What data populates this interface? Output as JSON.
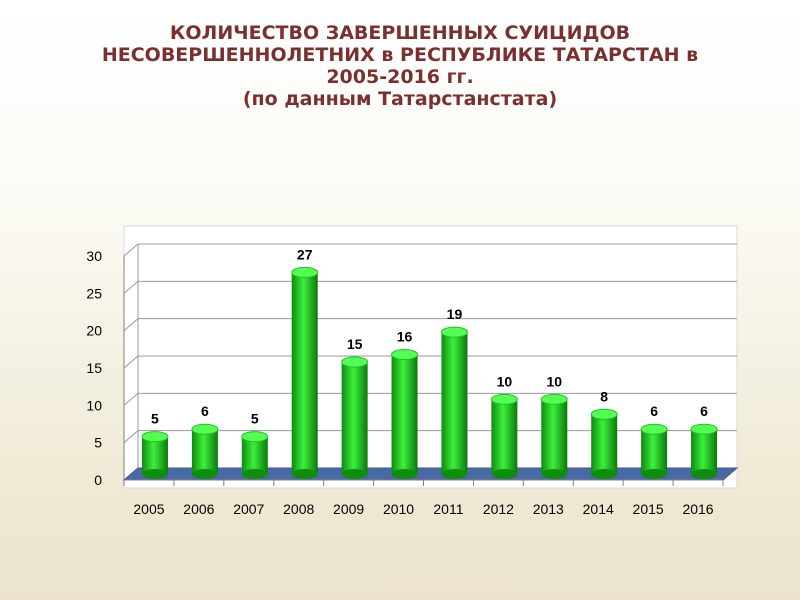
{
  "slide": {
    "title_lines": [
      "КОЛИЧЕСТВО ЗАВЕРШЕННЫХ СУИЦИДОВ",
      "НЕСОВЕРШЕННОЛЕТНИХ в РЕСПУБЛИКЕ ТАТАРСТАН в",
      "2005-2016 гг.",
      "(по данным Татарстанстата)"
    ]
  },
  "colors": {
    "bar": "#1ed21e",
    "floor": "#4a6aa6",
    "title": "#7a3030"
  },
  "chart_data": {
    "type": "bar",
    "categories": [
      "2005",
      "2006",
      "2007",
      "2008",
      "2009",
      "2010",
      "2011",
      "2012",
      "2013",
      "2014",
      "2015",
      "2016"
    ],
    "values": [
      5,
      6,
      5,
      27,
      15,
      16,
      19,
      10,
      10,
      8,
      6,
      6
    ],
    "data_labels": [
      "5",
      "6",
      "5",
      "27",
      "15",
      "16",
      "19",
      "10",
      "10",
      "8",
      "6",
      "6"
    ],
    "y_ticks": [
      "0",
      "5",
      "10",
      "15",
      "20",
      "25",
      "30"
    ],
    "ylim": [
      0,
      30
    ],
    "grid": true,
    "legend": "none",
    "style": "3d-cylinder"
  }
}
